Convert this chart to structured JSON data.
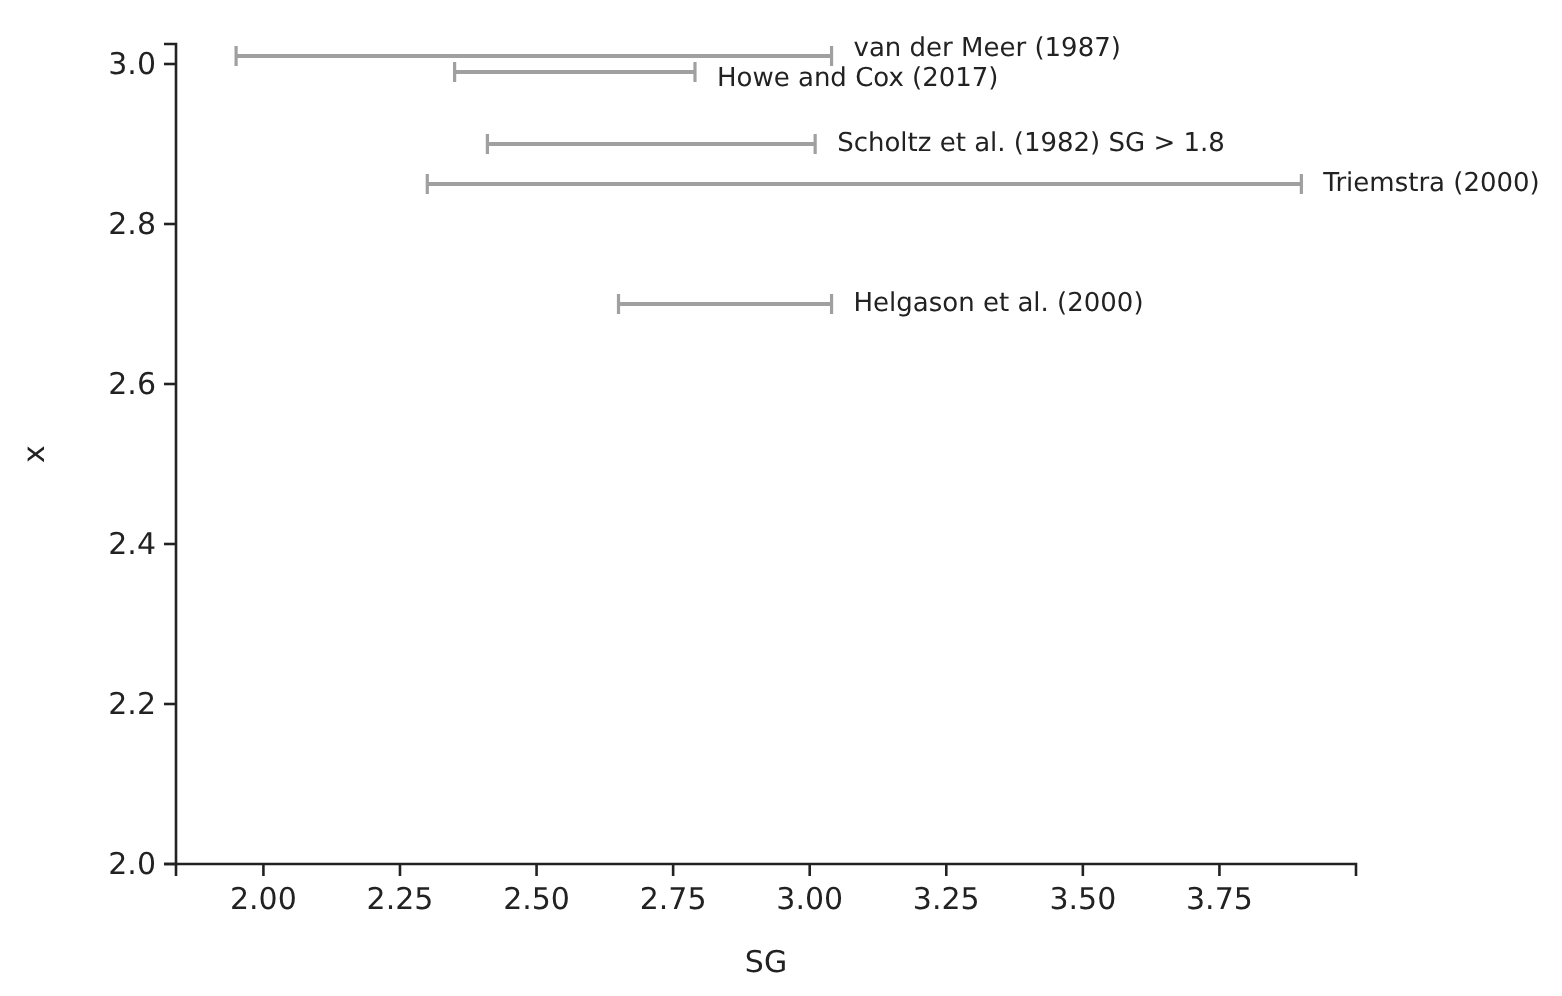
{
  "chart_data": {
    "type": "line",
    "xlabel": "SG",
    "ylabel": "x",
    "marker": "none",
    "grid": false,
    "legend": "top right",
    "xlim": [
      1.84,
      4.0
    ],
    "xticks": [
      {
        "value": 2,
        "label": "2.00"
      },
      {
        "value": 2.25,
        "label": "2.25"
      },
      {
        "value": 2.5,
        "label": "2.50"
      },
      {
        "value": 2.75,
        "label": "2.75"
      },
      {
        "value": 3,
        "label": "3.00"
      },
      {
        "value": 3.25,
        "label": "3.25"
      },
      {
        "value": 3.5,
        "label": "3.50"
      },
      {
        "value": 3.75,
        "label": "3.75"
      }
    ],
    "ylim": [
      2.0,
      3.025
    ],
    "yticks": [
      {
        "value": 2,
        "label": "2.0"
      },
      {
        "value": 2.2,
        "label": "2.2"
      },
      {
        "value": 2.4,
        "label": "2.4"
      },
      {
        "value": 2.6,
        "label": "2.6"
      },
      {
        "value": 2.8,
        "label": "2.8"
      },
      {
        "value": 3,
        "label": "3.0"
      }
    ],
    "series": [
      {
        "name": "van der Meer (1987)",
        "color": "#a0a0a0",
        "x": [
          1.95,
          3.04
        ],
        "values": [
          3.01,
          3.01
        ]
      },
      {
        "name": "Howe and Cox (2017)",
        "color": "#a0a0a0",
        "x": [
          2.35,
          2.79
        ],
        "values": [
          2.99,
          2.99
        ]
      },
      {
        "name": "Scholtz et al. (1982) SG > 1.8",
        "color": "#a0a0a0",
        "x": [
          2.41,
          3.01
        ],
        "values": [
          2.9,
          2.9
        ]
      },
      {
        "name": "Triemstra (2000)",
        "color": "#a0a0a0",
        "x": [
          2.3,
          3.9
        ],
        "values": [
          2.85,
          2.85
        ]
      },
      {
        "name": "Helgason et al. (2000)",
        "color": "#a0a0a0",
        "x": [
          2.65,
          3.04
        ],
        "values": [
          2.7,
          2.7
        ]
      }
    ]
  }
}
